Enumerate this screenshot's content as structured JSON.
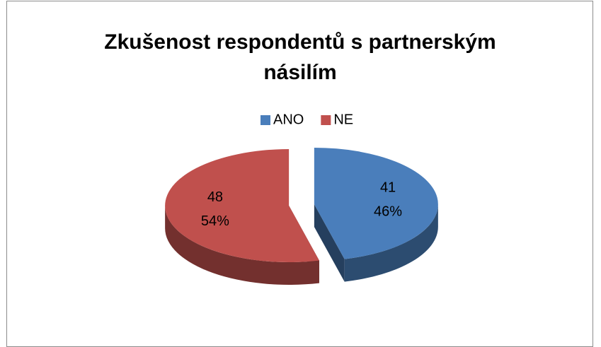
{
  "chart_data": {
    "type": "pie3d",
    "title": "Zkušenost respondentů s partnerským násilím",
    "categories": [
      "ANO",
      "NE"
    ],
    "values": [
      41,
      48
    ],
    "percent_labels": [
      "46%",
      "54%"
    ],
    "colors": [
      "#4a7ebb",
      "#c0504d"
    ],
    "legend": "top"
  }
}
